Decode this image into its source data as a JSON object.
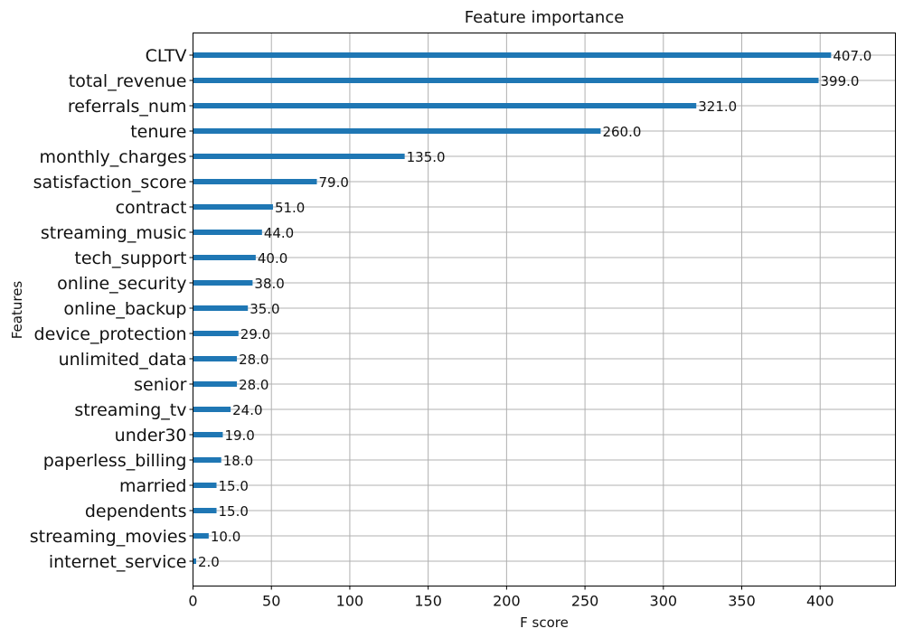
{
  "chart_data": {
    "type": "bar",
    "orientation": "horizontal",
    "title": "Feature importance",
    "xlabel": "F score",
    "ylabel": "Features",
    "xlim": [
      0,
      448
    ],
    "xticks": [
      0,
      50,
      100,
      150,
      200,
      250,
      300,
      350,
      400
    ],
    "grid": true,
    "bar_color": "#1f77b4",
    "categories": [
      "CLTV",
      "total_revenue",
      "referrals_num",
      "tenure",
      "monthly_charges",
      "satisfaction_score",
      "contract",
      "streaming_music",
      "tech_support",
      "online_security",
      "online_backup",
      "device_protection",
      "unlimited_data",
      "senior",
      "streaming_tv",
      "under30",
      "paperless_billing",
      "married",
      "dependents",
      "streaming_movies",
      "internet_service"
    ],
    "values": [
      407,
      399,
      321,
      260,
      135,
      79,
      51,
      44,
      40,
      38,
      35,
      29,
      28,
      28,
      24,
      19,
      18,
      15,
      15,
      10,
      2
    ],
    "value_labels": [
      "407.0",
      "399.0",
      "321.0",
      "260.0",
      "135.0",
      "79.0",
      "51.0",
      "44.0",
      "40.0",
      "38.0",
      "35.0",
      "29.0",
      "28.0",
      "28.0",
      "24.0",
      "19.0",
      "18.0",
      "15.0",
      "15.0",
      "10.0",
      "2.0"
    ]
  }
}
